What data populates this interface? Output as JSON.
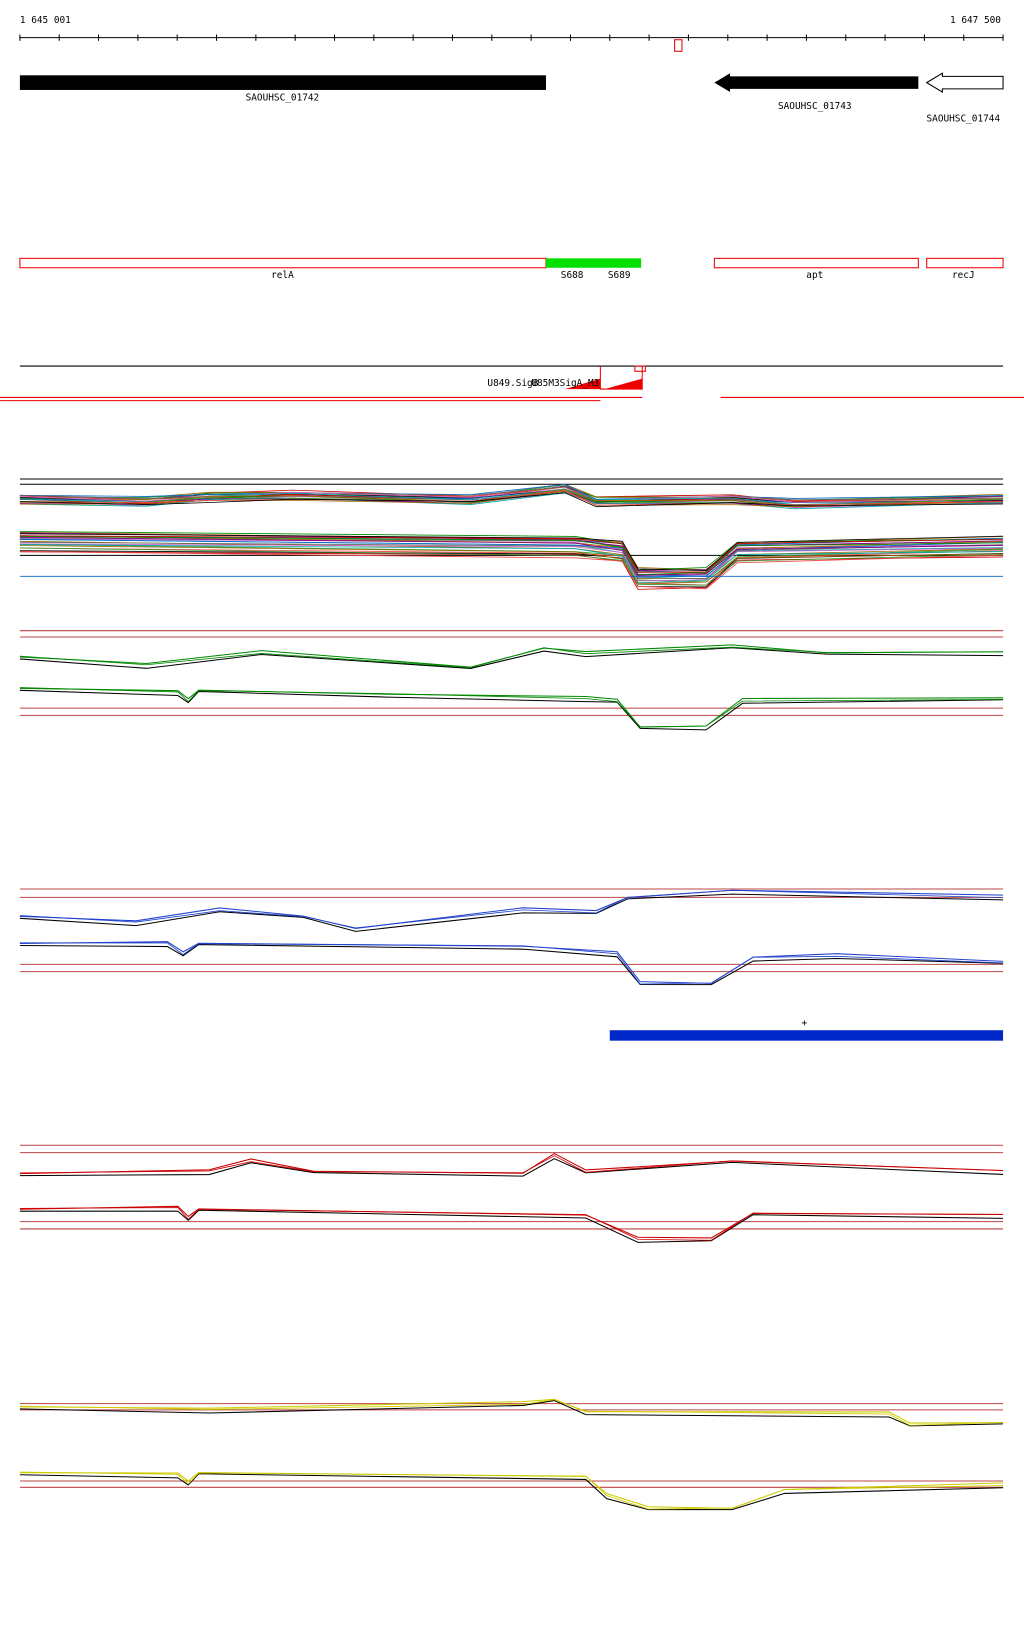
{
  "ruler": {
    "start": "1 645 001",
    "end": "1 647 500"
  },
  "genes": [
    {
      "label": "SAOUHSC_01742"
    },
    {
      "label": "SAOUHSC_01743"
    },
    {
      "label": "SAOUHSC_01744"
    }
  ],
  "features": [
    {
      "label": "relA"
    },
    {
      "label": "S688"
    },
    {
      "label": "S689"
    },
    {
      "label": "apt"
    },
    {
      "label": "recJ"
    }
  ],
  "probes": [
    {
      "label": "U849.SigB"
    },
    {
      "label": "U85M3SigA_M3"
    }
  ],
  "strand": {
    "label": "+"
  }
}
